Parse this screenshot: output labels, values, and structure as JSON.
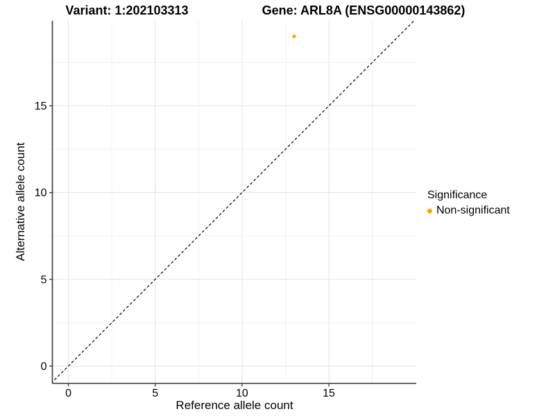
{
  "header": {
    "variant_title": "Variant: 1:202103313",
    "gene_title": "Gene: ARL8A (ENSG00000143862)"
  },
  "chart_data": {
    "type": "scatter",
    "xlabel": "Reference allele count",
    "ylabel": "Alternative allele count",
    "xlim": [
      -0.92,
      20.03
    ],
    "ylim": [
      -1.0,
      19.9
    ],
    "xticks": [
      0,
      5,
      10,
      15
    ],
    "yticks": [
      0,
      5,
      10,
      15
    ],
    "minor_xticks": [
      2.5,
      7.5,
      12.5,
      17.5
    ],
    "minor_yticks": [
      2.5,
      7.5,
      12.5,
      17.5
    ],
    "grid": {
      "major": true,
      "minor": true
    },
    "identity_line": {
      "style": "dashed",
      "from": [
        -1,
        -1
      ],
      "to": [
        20,
        20
      ],
      "color": "#000000"
    },
    "points": [
      {
        "x": 13,
        "y": 19,
        "significance": "Non-significant",
        "color": "#FFA500"
      }
    ],
    "legend": {
      "title": "Significance",
      "position": "right",
      "items": [
        {
          "label": "Non-significant",
          "color": "#FFA500"
        }
      ]
    }
  },
  "colors": {
    "background": "#FFFFFF",
    "point": "#FFA500",
    "grid_major": "#E4E4E4",
    "grid_minor": "#F2F2F2",
    "axis_line": "#333333",
    "text": "#000000"
  }
}
